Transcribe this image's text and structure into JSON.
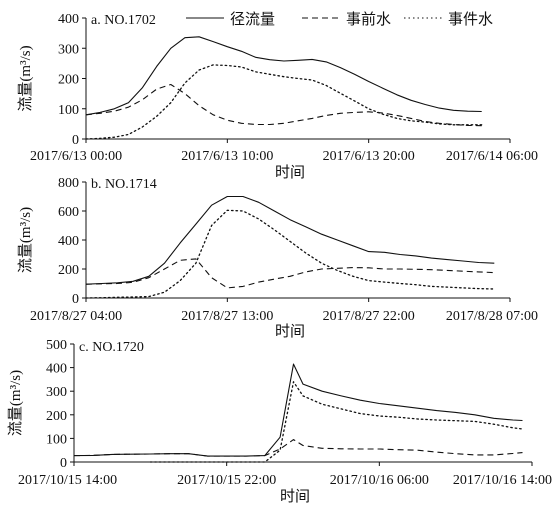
{
  "legend": [
    {
      "name": "径流量",
      "style": "solid"
    },
    {
      "name": "事前水",
      "style": "dashed"
    },
    {
      "name": "事件水",
      "style": "dotted"
    }
  ],
  "chart_data": [
    {
      "type": "line",
      "title": "a. NO.1702",
      "xlabel": "时间",
      "ylabel": "流量(m³/s)",
      "xticks": [
        "2017/6/13 00:00",
        "2017/6/13 10:00",
        "2017/6/13 20:00",
        "2017/6/14 06:00"
      ],
      "xlim": [
        0,
        30
      ],
      "ylim": [
        0,
        400
      ],
      "yticks": [
        0,
        100,
        200,
        300,
        400
      ],
      "series": [
        {
          "name": "径流量",
          "style": "solid",
          "x": [
            0,
            1,
            2,
            3,
            4,
            5,
            6,
            7,
            8,
            9,
            10,
            11,
            12,
            13,
            14,
            15,
            16,
            17,
            18,
            19,
            20,
            21,
            22,
            23,
            24,
            25,
            26,
            27,
            28
          ],
          "y": [
            80,
            88,
            100,
            120,
            170,
            240,
            300,
            335,
            338,
            322,
            305,
            290,
            270,
            262,
            258,
            260,
            263,
            255,
            236,
            214,
            190,
            168,
            146,
            128,
            114,
            102,
            95,
            92,
            91
          ]
        },
        {
          "name": "事前水",
          "style": "dashed",
          "x": [
            0,
            1,
            2,
            3,
            4,
            5,
            6,
            7,
            8,
            9,
            10,
            11,
            12,
            13,
            14,
            15,
            16,
            17,
            18,
            19,
            20,
            21,
            22,
            23,
            24,
            25,
            26,
            27,
            28
          ],
          "y": [
            80,
            85,
            92,
            105,
            130,
            165,
            180,
            150,
            110,
            80,
            62,
            52,
            48,
            48,
            52,
            60,
            68,
            78,
            85,
            88,
            90,
            86,
            78,
            68,
            58,
            52,
            48,
            45,
            44
          ]
        },
        {
          "name": "事件水",
          "style": "dotted",
          "x": [
            0,
            1,
            2,
            3,
            4,
            5,
            6,
            7,
            8,
            9,
            10,
            11,
            12,
            13,
            14,
            15,
            16,
            17,
            18,
            19,
            20,
            21,
            22,
            23,
            24,
            25,
            26,
            27,
            28
          ],
          "y": [
            0,
            2,
            6,
            15,
            40,
            75,
            120,
            185,
            228,
            245,
            243,
            238,
            222,
            214,
            206,
            200,
            195,
            177,
            151,
            126,
            100,
            82,
            68,
            60,
            56,
            50,
            47,
            47,
            47
          ]
        }
      ]
    },
    {
      "type": "line",
      "title": "b. NO.1714",
      "xlabel": "时间",
      "ylabel": "流量(m³/s)",
      "xticks": [
        "2017/8/27 04:00",
        "2017/8/27 13:00",
        "2017/8/27 22:00",
        "2017/8/28 07:00"
      ],
      "xlim": [
        0,
        27
      ],
      "ylim": [
        0,
        800
      ],
      "yticks": [
        0,
        200,
        400,
        600,
        800
      ],
      "series": [
        {
          "name": "径流量",
          "style": "solid",
          "x": [
            0,
            1,
            2,
            3,
            4,
            5,
            6,
            7,
            8,
            9,
            10,
            11,
            12,
            13,
            14,
            15,
            16,
            17,
            18,
            19,
            20,
            21,
            22,
            23,
            24,
            25,
            26
          ],
          "y": [
            95,
            100,
            105,
            115,
            150,
            240,
            380,
            510,
            640,
            700,
            700,
            660,
            600,
            540,
            490,
            440,
            400,
            360,
            320,
            315,
            300,
            290,
            275,
            265,
            255,
            245,
            240
          ]
        },
        {
          "name": "事前水",
          "style": "dashed",
          "x": [
            0,
            1,
            2,
            3,
            4,
            5,
            6,
            7,
            8,
            9,
            10,
            11,
            12,
            13,
            14,
            15,
            16,
            17,
            18,
            19,
            20,
            21,
            22,
            23,
            24,
            25,
            26
          ],
          "y": [
            95,
            98,
            100,
            108,
            140,
            200,
            260,
            270,
            140,
            70,
            80,
            110,
            130,
            150,
            180,
            200,
            205,
            210,
            208,
            200,
            200,
            198,
            195,
            190,
            185,
            180,
            175
          ]
        },
        {
          "name": "事件水",
          "style": "dotted",
          "x": [
            0,
            1,
            2,
            3,
            4,
            5,
            6,
            7,
            8,
            9,
            10,
            11,
            12,
            13,
            14,
            15,
            16,
            17,
            18,
            19,
            20,
            21,
            22,
            23,
            24,
            25,
            26
          ],
          "y": [
            0,
            2,
            5,
            7,
            10,
            40,
            120,
            240,
            500,
            605,
            600,
            545,
            470,
            390,
            310,
            240,
            190,
            150,
            120,
            110,
            100,
            92,
            80,
            75,
            70,
            65,
            62
          ]
        }
      ]
    },
    {
      "type": "line",
      "title": "c. NO.1720",
      "xlabel": "时间",
      "ylabel": "流量(m³/s)",
      "xticks": [
        "2017/10/15 14:00",
        "2017/10/15 22:00",
        "2017/10/16 06:00",
        "2017/10/16 14:00"
      ],
      "xlim": [
        0,
        24
      ],
      "ylim": [
        0,
        500
      ],
      "yticks": [
        0,
        100,
        200,
        300,
        400,
        500
      ],
      "series": [
        {
          "name": "径流量",
          "style": "solid",
          "x": [
            0,
            1,
            2,
            3,
            4,
            5,
            6,
            7,
            8,
            9,
            10,
            10.8,
            11.5,
            12,
            13,
            14,
            15,
            16,
            17,
            18,
            19,
            20,
            21,
            22,
            23,
            23.5
          ],
          "y": [
            27,
            28,
            32,
            33,
            34,
            35,
            35,
            25,
            25,
            25,
            27,
            105,
            415,
            330,
            300,
            280,
            262,
            248,
            238,
            228,
            218,
            210,
            200,
            185,
            178,
            176
          ]
        },
        {
          "name": "事前水",
          "style": "dashed",
          "x": [
            0,
            1,
            2,
            3,
            4,
            5,
            6,
            7,
            8,
            9,
            10,
            10.8,
            11.5,
            12,
            13,
            14,
            15,
            16,
            17,
            18,
            19,
            20,
            21,
            22,
            23,
            23.5
          ],
          "y": [
            27,
            28,
            32,
            33,
            34,
            35,
            35,
            25,
            25,
            25,
            27,
            55,
            95,
            70,
            58,
            56,
            55,
            55,
            52,
            50,
            42,
            35,
            30,
            30,
            36,
            40
          ]
        },
        {
          "name": "事件水",
          "style": "dotted",
          "x": [
            4,
            5,
            6,
            7,
            8,
            9,
            10,
            10.8,
            11.5,
            12,
            13,
            14,
            15,
            16,
            17,
            18,
            19,
            20,
            21,
            22,
            23,
            23.5
          ],
          "y": [
            0,
            0,
            0,
            0,
            0,
            0,
            0,
            50,
            340,
            280,
            245,
            225,
            205,
            195,
            190,
            182,
            178,
            175,
            172,
            160,
            145,
            140
          ]
        }
      ]
    }
  ]
}
